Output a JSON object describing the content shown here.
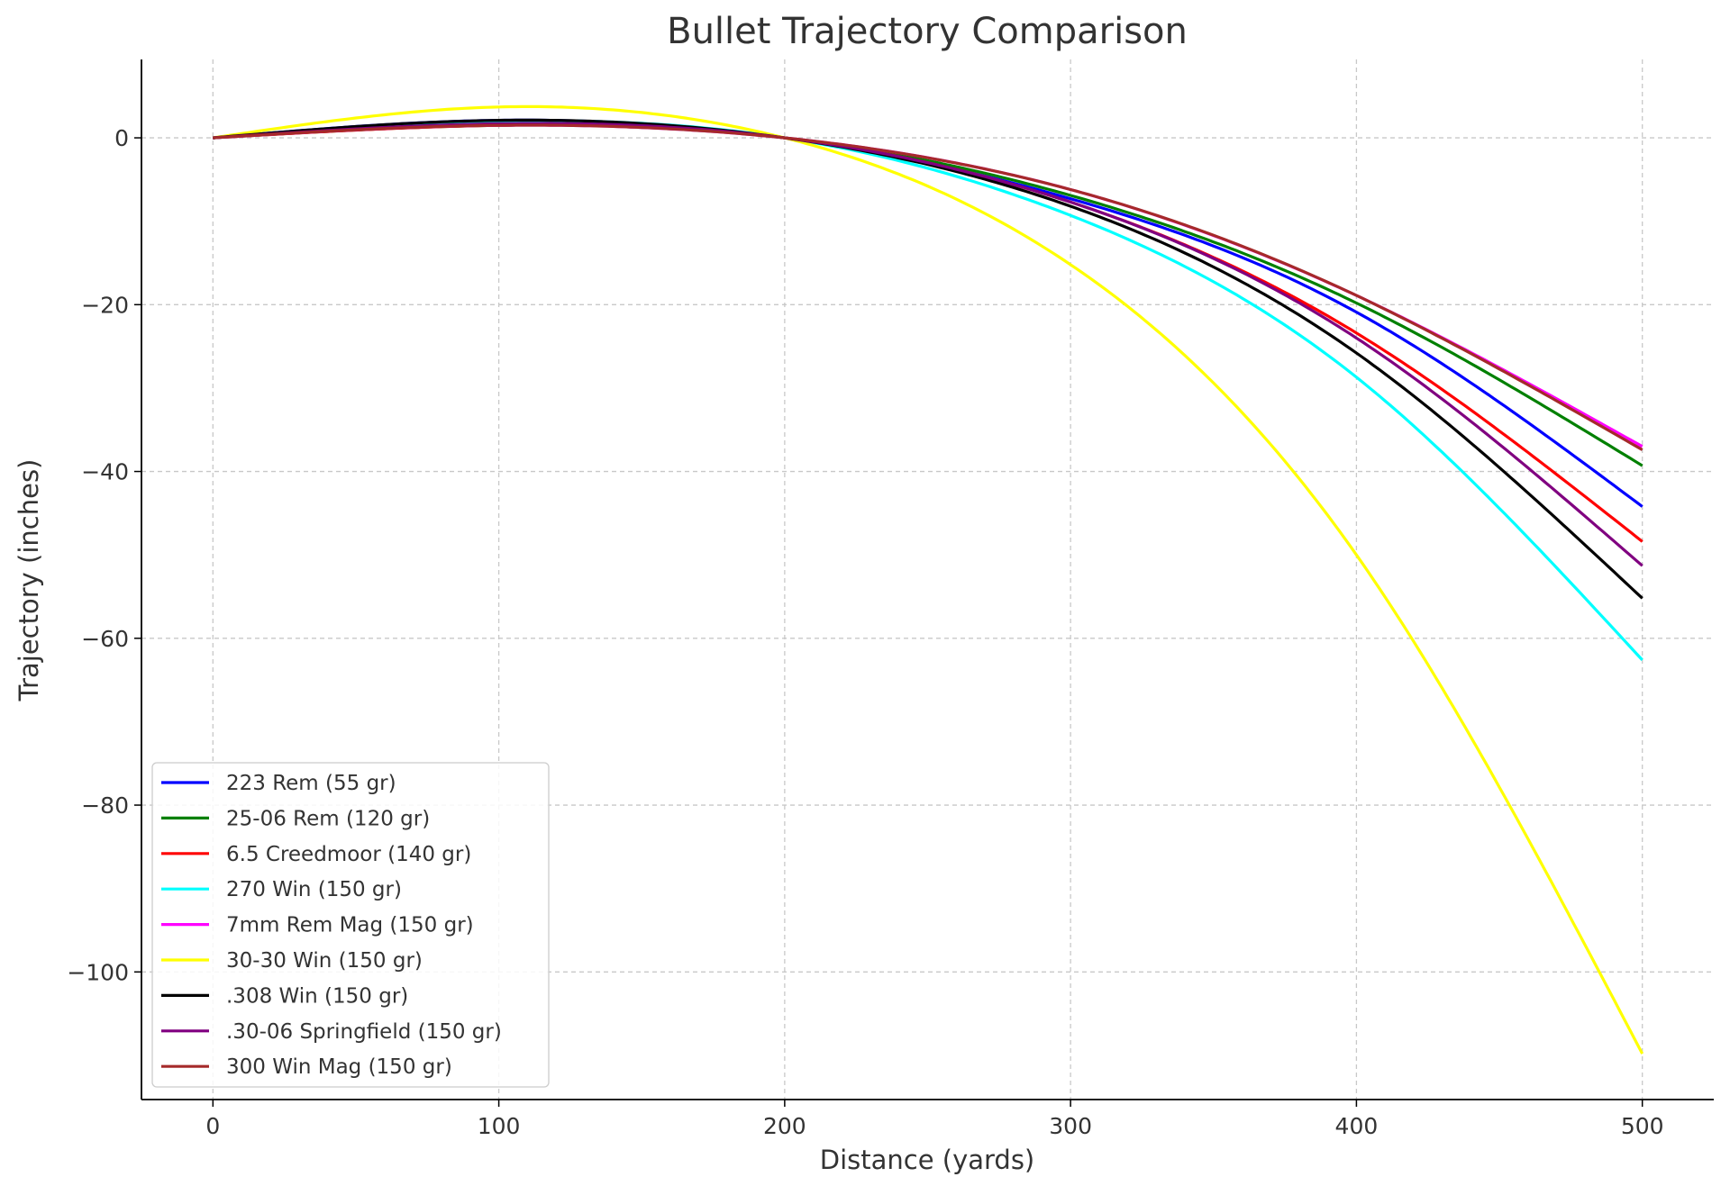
{
  "chart_data": {
    "type": "line",
    "title": "Bullet Trajectory Comparison",
    "xlabel": "Distance (yards)",
    "ylabel": "Trajectory (inches)",
    "xlim": [
      -25,
      525
    ],
    "ylim": [
      -115.3,
      9.4
    ],
    "xticks": [
      0,
      100,
      200,
      300,
      400,
      500
    ],
    "yticks": [
      0,
      -20,
      -40,
      -60,
      -80,
      -100
    ],
    "ytick_labels": [
      "0",
      "−20",
      "−40",
      "−60",
      "−80",
      "−100"
    ],
    "grid": true,
    "legend_position": "lower-left",
    "x": [
      0,
      100,
      200,
      300,
      400,
      500
    ],
    "series": [
      {
        "name": "223 Rem (55 gr)",
        "color": "#0000ff",
        "values": [
          0,
          2.1,
          0,
          -7.3,
          -20.9,
          -44.2
        ]
      },
      {
        "name": "25-06 Rem (120 gr)",
        "color": "#008000",
        "values": [
          0,
          1.5,
          0,
          -6.9,
          -19.8,
          -39.3
        ]
      },
      {
        "name": "6.5 Creedmoor (140 gr)",
        "color": "#ff0000",
        "values": [
          0,
          1.5,
          0,
          -7.7,
          -23.4,
          -48.4
        ]
      },
      {
        "name": "270 Win (150 gr)",
        "color": "#00ffff",
        "values": [
          0,
          2.0,
          0,
          -9.3,
          -28.7,
          -62.6
        ]
      },
      {
        "name": "7mm Rem Mag (150 gr)",
        "color": "#ff00ff",
        "values": [
          0,
          1.5,
          0,
          -6.2,
          -18.9,
          -37.0
        ]
      },
      {
        "name": "30-30 Win (150 gr)",
        "color": "#ffff00",
        "values": [
          0,
          3.7,
          0,
          -15.2,
          -50.0,
          -109.8
        ]
      },
      {
        "name": ".308 Win (150 gr)",
        "color": "#000000",
        "values": [
          0,
          2.1,
          0,
          -8.2,
          -25.8,
          -55.2
        ]
      },
      {
        "name": ".30-06 Springfield (150 gr)",
        "color": "#800080",
        "values": [
          0,
          1.7,
          0,
          -7.7,
          -24.0,
          -51.3
        ]
      },
      {
        "name": "300 Win Mag (150 gr)",
        "color": "#a52a2a",
        "values": [
          0,
          1.5,
          0,
          -6.2,
          -18.9,
          -37.4
        ]
      }
    ]
  }
}
